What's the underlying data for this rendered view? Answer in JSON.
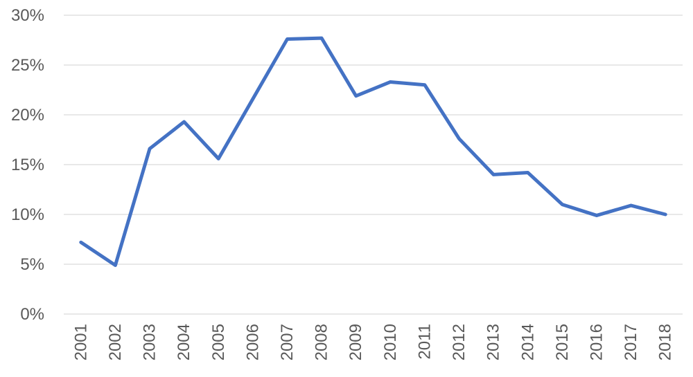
{
  "chart_data": {
    "type": "line",
    "title": "",
    "xlabel": "",
    "ylabel": "",
    "categories": [
      "2001",
      "2002",
      "2003",
      "2004",
      "2005",
      "2006",
      "2007",
      "2008",
      "2009",
      "2010",
      "2011",
      "2012",
      "2013",
      "2014",
      "2015",
      "2016",
      "2017",
      "2018"
    ],
    "series": [
      {
        "color": "#4472c4",
        "values": [
          0.072,
          0.049,
          0.166,
          0.193,
          0.156,
          0.216,
          0.276,
          0.277,
          0.219,
          0.233,
          0.23,
          0.176,
          0.14,
          0.142,
          0.11,
          0.099,
          0.109,
          0.1
        ]
      }
    ],
    "ylim": [
      0,
      0.3
    ],
    "y_ticks": [
      0,
      0.05,
      0.1,
      0.15,
      0.2,
      0.25,
      0.3
    ],
    "y_tick_labels": [
      "0%",
      "5%",
      "10%",
      "15%",
      "20%",
      "25%",
      "30%"
    ],
    "grid": true,
    "legend": "none",
    "x_tick_rotation": "vertical"
  }
}
